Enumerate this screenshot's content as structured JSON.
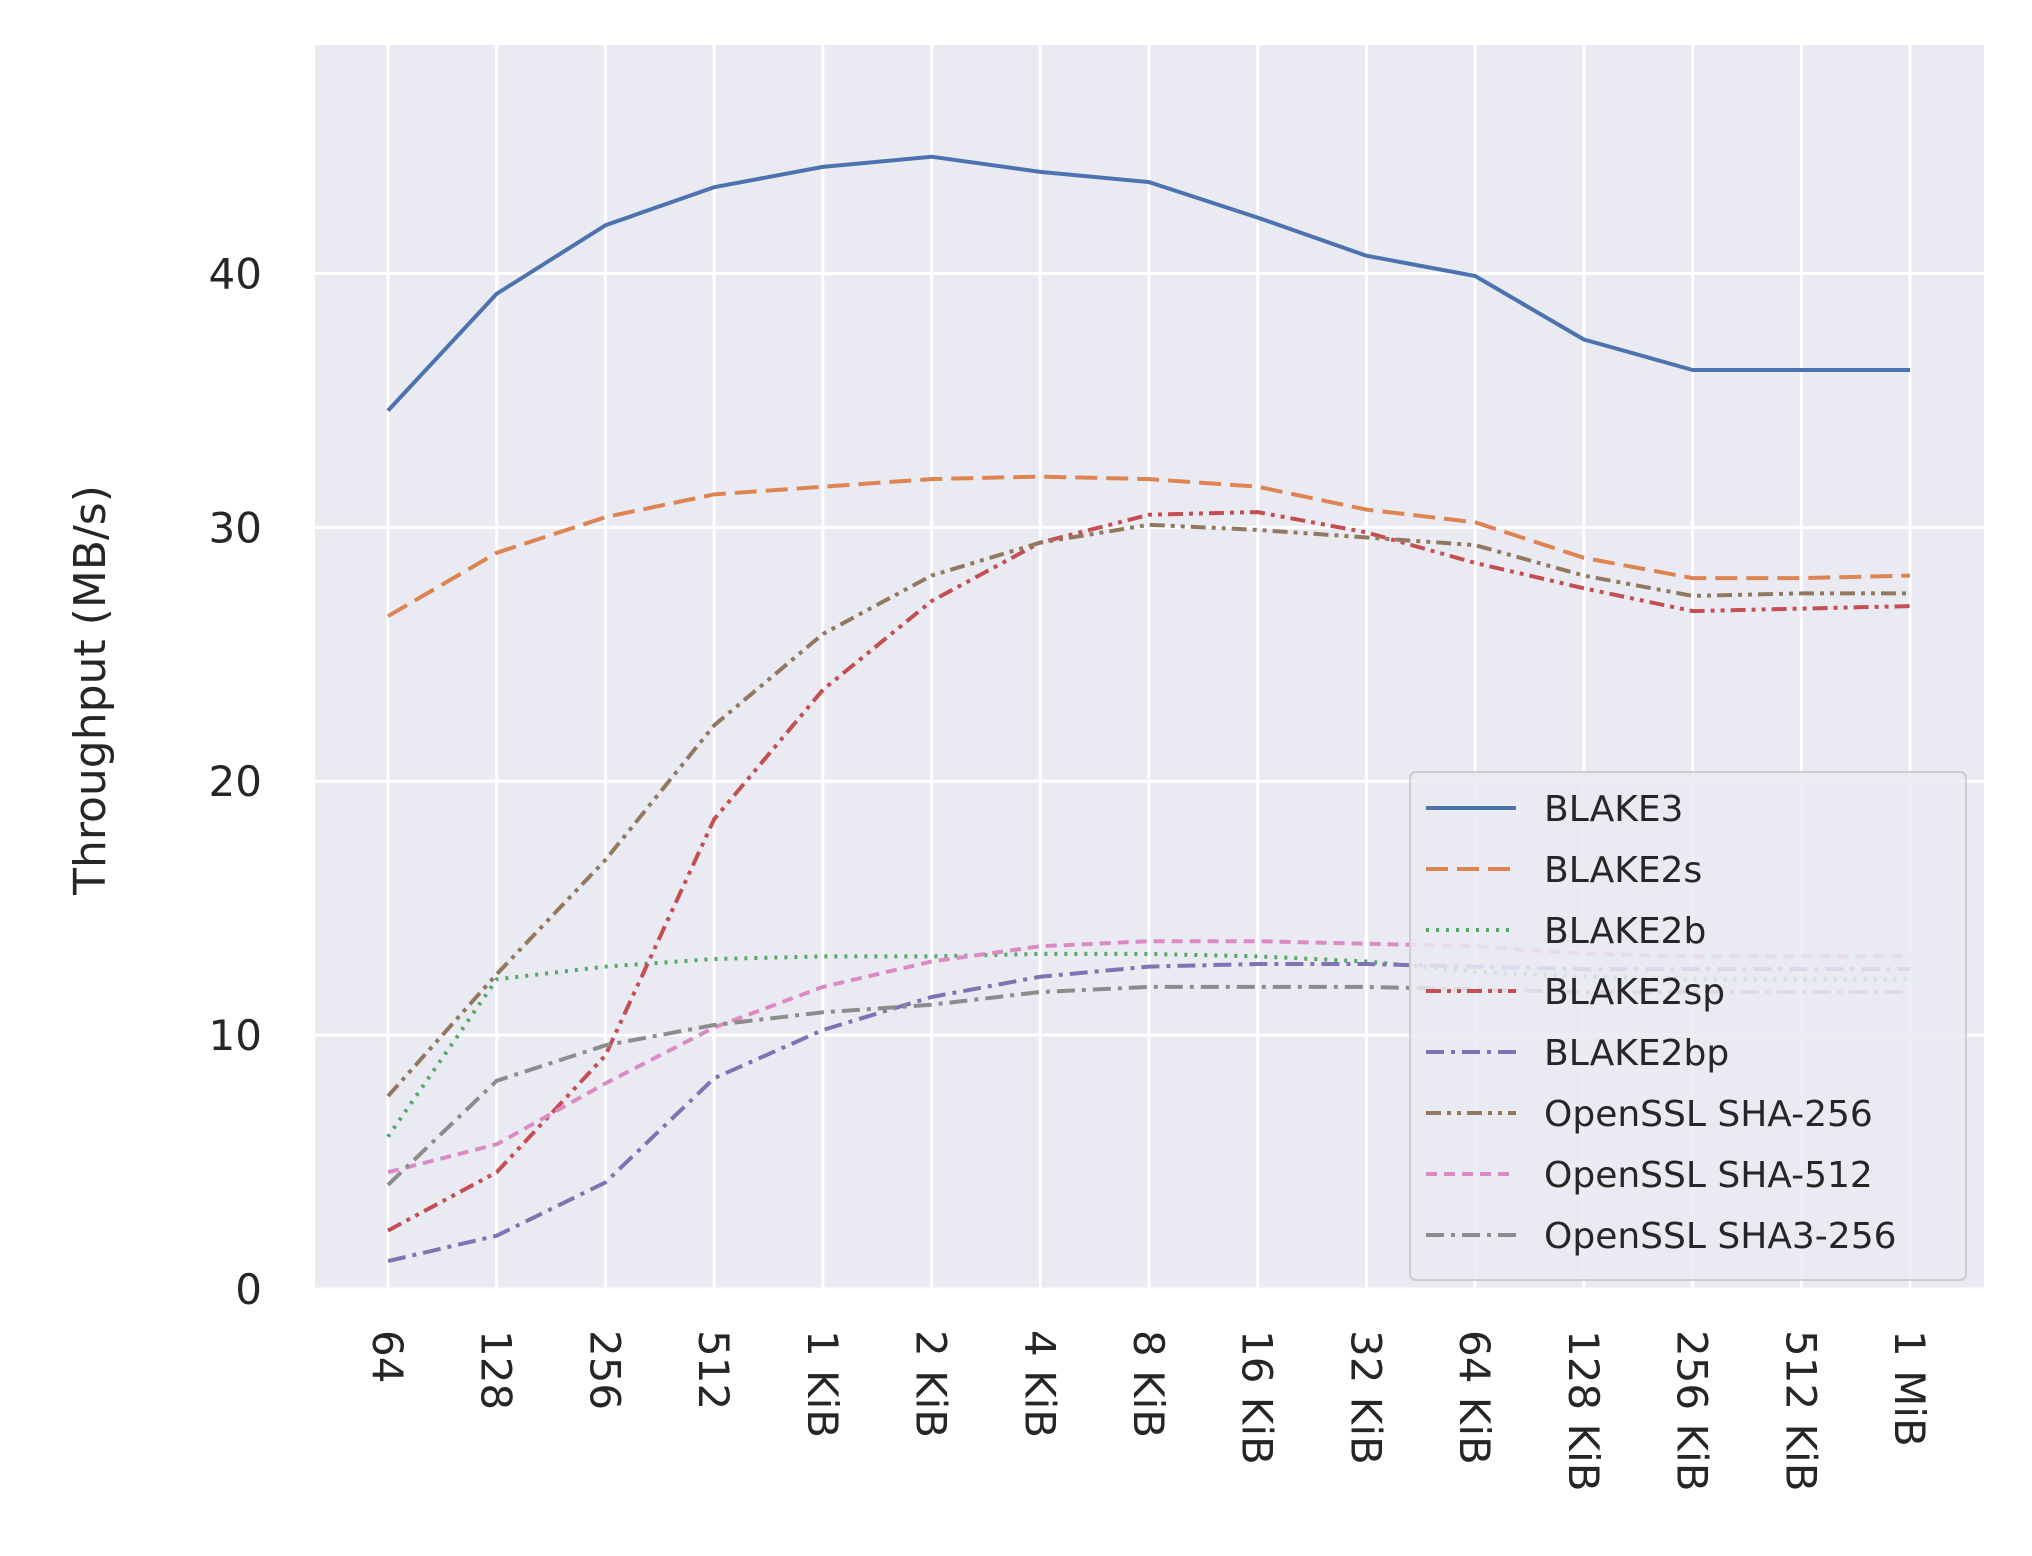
{
  "chart_data": {
    "type": "line",
    "title": "",
    "xlabel": "",
    "ylabel": "Throughput (MB/s)",
    "categories": [
      "64",
      "128",
      "256",
      "512",
      "1 KiB",
      "2 KiB",
      "4 KiB",
      "8 KiB",
      "16 KiB",
      "32 KiB",
      "64 KiB",
      "128 KiB",
      "256 KiB",
      "512 KiB",
      "1 MiB"
    ],
    "ylim": [
      0,
      49
    ],
    "yticks": [
      0,
      10,
      20,
      30,
      40
    ],
    "grid": true,
    "legend_position": "lower-right",
    "background": "#eaeaf2",
    "series": [
      {
        "name": "BLAKE3",
        "color": "#4c72b0",
        "dash": "solid",
        "values": [
          34.6,
          39.2,
          41.9,
          43.4,
          44.2,
          44.6,
          44.0,
          43.6,
          42.2,
          40.7,
          39.9,
          37.4,
          36.2,
          36.2,
          36.2
        ]
      },
      {
        "name": "BLAKE2s",
        "color": "#dd8452",
        "dash": "dashed",
        "values": [
          26.5,
          29.0,
          30.4,
          31.3,
          31.6,
          31.9,
          32.0,
          31.9,
          31.6,
          30.7,
          30.2,
          28.8,
          28.0,
          28.0,
          28.1
        ]
      },
      {
        "name": "BLAKE2b",
        "color": "#55a868",
        "dash": "dotted",
        "values": [
          6.0,
          12.2,
          12.7,
          13.0,
          13.1,
          13.1,
          13.2,
          13.2,
          13.1,
          12.9,
          12.5,
          12.3,
          12.2,
          12.2,
          12.2
        ]
      },
      {
        "name": "BLAKE2sp",
        "color": "#c44e52",
        "dash": "dash-dot-dot",
        "values": [
          2.3,
          4.6,
          9.2,
          18.5,
          23.6,
          27.1,
          29.4,
          30.5,
          30.6,
          29.8,
          28.6,
          27.6,
          26.7,
          26.8,
          26.9
        ]
      },
      {
        "name": "BLAKE2bp",
        "color": "#8172b3",
        "dash": "dash-dot",
        "values": [
          1.1,
          2.1,
          4.2,
          8.3,
          10.2,
          11.5,
          12.3,
          12.7,
          12.8,
          12.8,
          12.7,
          12.6,
          12.6,
          12.6,
          12.6
        ]
      },
      {
        "name": "OpenSSL SHA-256",
        "color": "#937860",
        "dash": "dash-dot-dot",
        "values": [
          7.6,
          12.4,
          16.9,
          22.2,
          25.8,
          28.1,
          29.4,
          30.1,
          29.9,
          29.6,
          29.3,
          28.1,
          27.3,
          27.4,
          27.4
        ]
      },
      {
        "name": "OpenSSL SHA-512",
        "color": "#da8bc3",
        "dash": "short-dashed",
        "values": [
          4.6,
          5.7,
          8.1,
          10.3,
          11.9,
          12.9,
          13.5,
          13.7,
          13.7,
          13.6,
          13.5,
          13.2,
          13.1,
          13.1,
          13.1
        ]
      },
      {
        "name": "OpenSSL SHA3-256",
        "color": "#8c8c8c",
        "dash": "dash-dot",
        "values": [
          4.1,
          8.2,
          9.6,
          10.4,
          10.9,
          11.2,
          11.7,
          11.9,
          11.9,
          11.9,
          11.8,
          11.7,
          11.7,
          11.7,
          11.7
        ]
      }
    ]
  }
}
